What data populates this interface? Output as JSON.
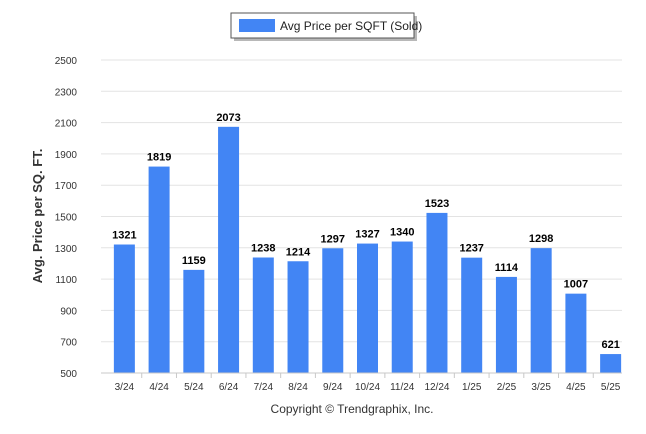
{
  "chart_data": {
    "type": "bar",
    "categories": [
      "3/24",
      "4/24",
      "5/24",
      "6/24",
      "7/24",
      "8/24",
      "9/24",
      "10/24",
      "11/24",
      "12/24",
      "1/25",
      "2/25",
      "3/25",
      "4/25",
      "5/25"
    ],
    "series": [
      {
        "name": "Avg Price per SQFT (Sold)",
        "values": [
          1321,
          1819,
          1159,
          2073,
          1238,
          1214,
          1297,
          1327,
          1340,
          1523,
          1237,
          1114,
          1298,
          1007,
          621
        ],
        "color": "#4285f4"
      }
    ],
    "data_labels": [
      "1321",
      "1819",
      "1159",
      "2073",
      "1238",
      "1214",
      "1297",
      "1327",
      "1340",
      "1523",
      "1237",
      "1114",
      "1298",
      "1007",
      "621"
    ],
    "ylabel": "Avg. Price per SQ. FT.",
    "xlabel": "",
    "ylim": [
      500,
      2500
    ],
    "yticks": [
      2500,
      2300,
      2100,
      1900,
      1700,
      1500,
      1300,
      1100,
      900,
      700,
      500
    ],
    "grid": true,
    "legend_position": "top-center"
  },
  "footer": {
    "copyright": "Copyright © Trendgraphix, Inc."
  }
}
